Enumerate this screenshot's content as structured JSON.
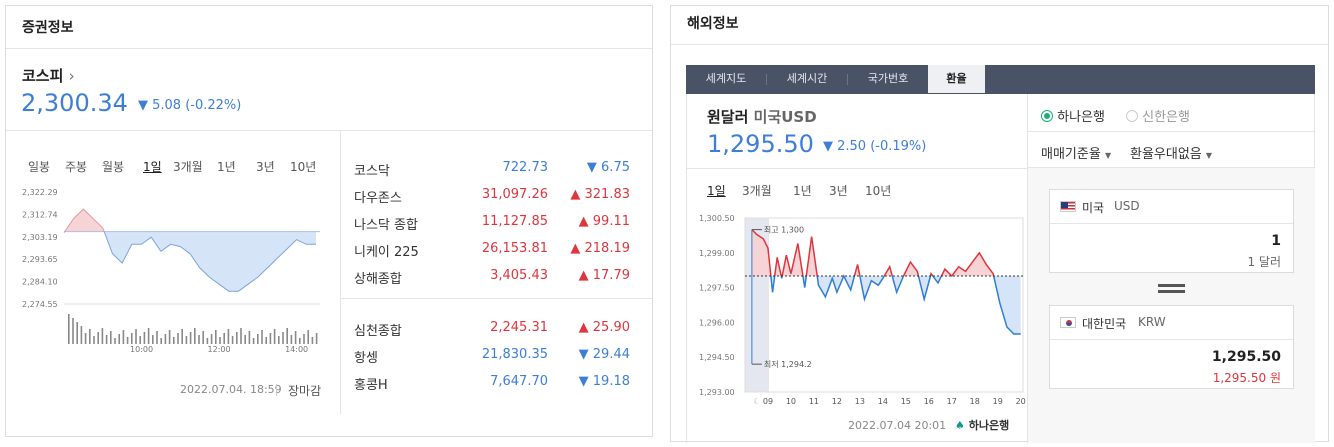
{
  "left": {
    "title": "증권정보",
    "index_name": "코스피",
    "index_arrow": "›",
    "index_value": "2,300.34",
    "index_change": "▼ 5.08 (-0.22%)",
    "periods": [
      "일봉",
      "주봉",
      "월봉",
      "1일",
      "3개월",
      "1년",
      "3년",
      "10년"
    ],
    "timestamp": "2022.07.04. 18:59",
    "status": "장마감",
    "markets": [
      {
        "name": "코스닥",
        "value": "722.73",
        "change": "▼ 6.75",
        "dir": "down"
      },
      {
        "name": "다우존스",
        "value": "31,097.26",
        "change": "▲ 321.83",
        "dir": "up"
      },
      {
        "name": "나스닥 종합",
        "value": "11,127.85",
        "change": "▲ 99.11",
        "dir": "up"
      },
      {
        "name": "니케이 225",
        "value": "26,153.81",
        "change": "▲ 218.19",
        "dir": "up"
      },
      {
        "name": "상해종합",
        "value": "3,405.43",
        "change": "▲ 17.79",
        "dir": "up"
      },
      {
        "name": "심천종합",
        "value": "2,245.31",
        "change": "▲ 25.90",
        "dir": "up"
      },
      {
        "name": "항셍",
        "value": "21,830.35",
        "change": "▼ 29.44",
        "dir": "down"
      },
      {
        "name": "홍콩H",
        "value": "7,647.70",
        "change": "▼ 19.18",
        "dir": "down"
      }
    ]
  },
  "right": {
    "title": "해외정보",
    "tabs": [
      "세계지도",
      "세계시간",
      "국가번호",
      "환율"
    ],
    "pair_label": "원달러",
    "pair_sub": "미국USD",
    "rate_value": "1,295.50",
    "rate_change": "▼ 2.50 (-0.19%)",
    "periods": [
      "1일",
      "3개월",
      "1년",
      "3년",
      "10년"
    ],
    "banks": [
      "하나은행",
      "신한은행"
    ],
    "selectors": [
      "매매기준율",
      "환율우대없음"
    ],
    "from_country": "미국",
    "from_currency": "USD",
    "from_amount": "1",
    "from_unit": "1 달러",
    "equals": "=",
    "to_country": "대한민국",
    "to_currency": "KRW",
    "to_amount": "1,295.50",
    "to_unit": "1,295.50 원",
    "timestamp": "2022.07.04 20:01",
    "provider": "하나은행",
    "max_label": "최고 1,300",
    "min_label": "최저 1,294.2"
  },
  "chart_data": [
    {
      "type": "area",
      "title": "",
      "y_ticks": [
        "2,322.29",
        "2,312.74",
        "2,303.19",
        "2,293.65",
        "2,284.10",
        "2,274.55"
      ],
      "x_ticks": [
        "10:00",
        "12:00",
        "14:00"
      ],
      "ylim": [
        2274.55,
        2322.29
      ],
      "baseline": 2305.42,
      "x": [
        0,
        0.25,
        0.5,
        0.75,
        1,
        1.25,
        1.5,
        1.75,
        2,
        2.25,
        2.5,
        2.75,
        3,
        3.25,
        3.5,
        3.75,
        4,
        4.25,
        4.5,
        4.75,
        5,
        5.25,
        5.5,
        5.75,
        6,
        6.25,
        6.5
      ],
      "values": [
        2305,
        2311,
        2315,
        2311,
        2307,
        2296,
        2292,
        2300,
        2300,
        2303,
        2297,
        2300,
        2299,
        2296,
        2290,
        2286,
        2283,
        2280,
        2280,
        2283,
        2286,
        2290,
        2294,
        2298,
        2302,
        2300,
        2300
      ]
    },
    {
      "type": "line",
      "title": "",
      "y_ticks": [
        "1,300.50",
        "1,299.00",
        "1,297.50",
        "1,296.00",
        "1,294.50",
        "1,293.00"
      ],
      "x_ticks": [
        "09",
        "10",
        "11",
        "12",
        "13",
        "14",
        "15",
        "16",
        "17",
        "18",
        "19",
        "20"
      ],
      "ylim": [
        1293.0,
        1300.5
      ],
      "baseline": 1298.0,
      "x": [
        8.3,
        8.5,
        8.8,
        9.0,
        9.2,
        9.4,
        9.6,
        9.8,
        10.0,
        10.3,
        10.6,
        10.9,
        11.2,
        11.5,
        11.8,
        12.0,
        12.3,
        12.6,
        12.9,
        13.2,
        13.5,
        13.8,
        14.0,
        14.3,
        14.6,
        14.9,
        15.2,
        15.5,
        15.8,
        16.1,
        16.4,
        16.7,
        17.0,
        17.3,
        17.6,
        17.9,
        18.2,
        18.5,
        18.8,
        19.1,
        19.4,
        19.7,
        20.0
      ],
      "values": [
        1300.0,
        1299.8,
        1299.6,
        1299.2,
        1297.3,
        1298.8,
        1297.9,
        1298.9,
        1298.1,
        1299.4,
        1297.5,
        1299.7,
        1297.6,
        1297.1,
        1297.9,
        1297.3,
        1298.0,
        1297.4,
        1298.5,
        1297.0,
        1297.8,
        1297.6,
        1297.9,
        1298.4,
        1297.3,
        1298.0,
        1298.6,
        1298.2,
        1297.0,
        1298.1,
        1297.7,
        1298.3,
        1298.0,
        1298.4,
        1298.2,
        1298.6,
        1299.0,
        1298.5,
        1298.1,
        1296.8,
        1295.8,
        1295.5,
        1295.5
      ]
    }
  ]
}
